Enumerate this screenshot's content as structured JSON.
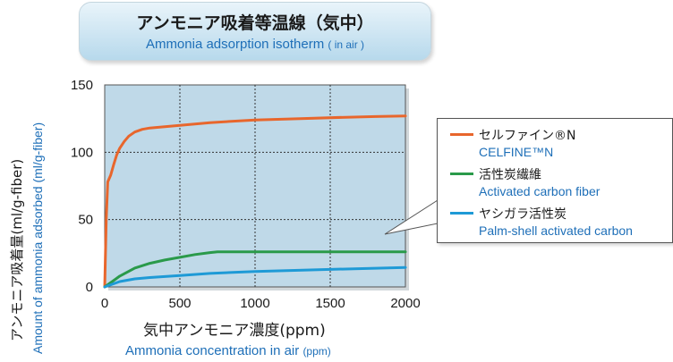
{
  "title": {
    "jp": "アンモニア吸着等温線（気中）",
    "en_main": "Ammonia adsorption isotherm",
    "en_paren": "( in air )"
  },
  "axes": {
    "y_jp": "アンモニア吸着量(ml/g-fiber)",
    "y_en": "Amount of ammonia adsorbed (ml/g-fiber)",
    "x_jp": "気中アンモニア濃度(ppm)",
    "x_en_main": "Ammonia concentration in air",
    "x_en_paren": "(ppm)"
  },
  "colors": {
    "celfine": "#e8662c",
    "acf": "#2a9a4a",
    "palm": "#1e9ad6",
    "plot_bg": "#bfd9e8"
  },
  "chart_data": {
    "type": "line",
    "title": "Ammonia adsorption isotherm ( in air )",
    "xlabel": "Ammonia concentration in air (ppm)",
    "ylabel": "Amount of ammonia adsorbed (ml/g-fiber)",
    "xlim": [
      0,
      2000
    ],
    "ylim": [
      0,
      150
    ],
    "x_ticks": [
      0,
      500,
      1000,
      1500,
      2000
    ],
    "y_ticks": [
      0,
      50,
      100,
      150
    ],
    "grid": true,
    "legend_placement": "right, outside plot with callout",
    "series": [
      {
        "name": "セルファイン®N",
        "name_en": "CELFINE™N",
        "color": "#e8662c",
        "x": [
          0,
          10,
          20,
          40,
          60,
          80,
          100,
          130,
          160,
          200,
          250,
          300,
          400,
          500,
          700,
          1000,
          1300,
          1600,
          1800,
          2000
        ],
        "y": [
          0,
          50,
          78,
          83,
          91,
          98,
          103,
          108,
          112,
          115,
          117,
          118,
          119,
          120,
          122,
          124,
          125,
          126,
          126.5,
          127
        ]
      },
      {
        "name": "活性炭繊維",
        "name_en": "Activated carbon fiber",
        "color": "#2a9a4a",
        "x": [
          0,
          50,
          100,
          200,
          300,
          400,
          500,
          600,
          700,
          750,
          1000,
          1500,
          2000
        ],
        "y": [
          0,
          4,
          8,
          14,
          17.5,
          20,
          22,
          24,
          25.5,
          26,
          26,
          26,
          26
        ]
      },
      {
        "name": "ヤシガラ活性炭",
        "name_en": "Palm-shell activated carbon",
        "color": "#1e9ad6",
        "x": [
          0,
          100,
          200,
          300,
          500,
          700,
          1000,
          1500,
          2000
        ],
        "y": [
          0,
          4,
          6,
          7,
          8.5,
          10,
          11.5,
          13,
          14.5
        ]
      }
    ]
  }
}
